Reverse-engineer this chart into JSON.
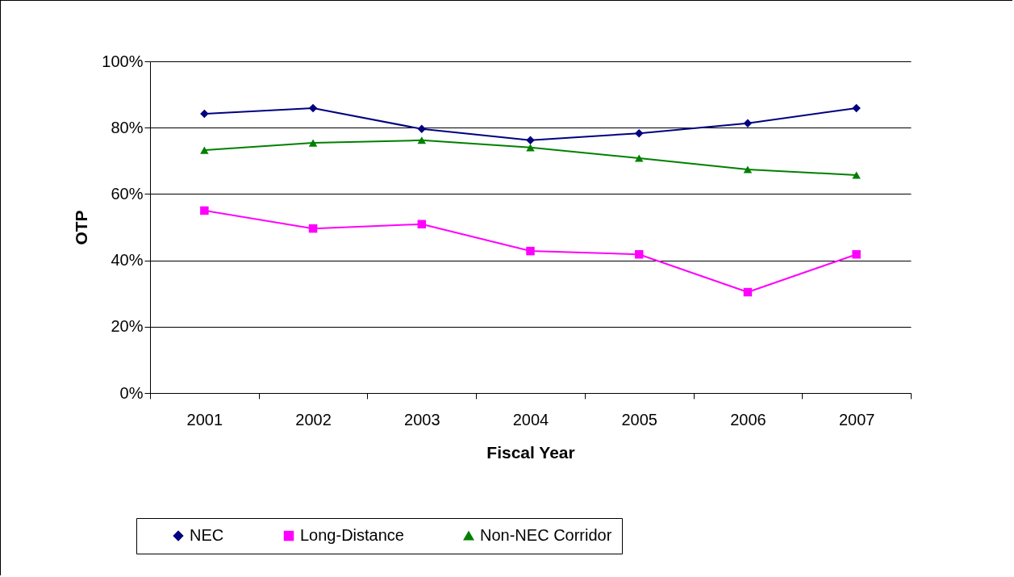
{
  "chart_data": {
    "type": "line",
    "xlabel": "Fiscal Year",
    "ylabel": "OTP",
    "categories": [
      "2001",
      "2002",
      "2003",
      "2004",
      "2005",
      "2006",
      "2007"
    ],
    "series": [
      {
        "name": "NEC",
        "color": "#000080",
        "marker": "diamond",
        "values": [
          84.2,
          85.9,
          79.6,
          76.2,
          78.3,
          81.3,
          85.9
        ]
      },
      {
        "name": "Long-Distance",
        "color": "#ff00ff",
        "marker": "square",
        "values": [
          55.0,
          49.6,
          50.9,
          42.8,
          41.8,
          30.4,
          41.8
        ]
      },
      {
        "name": "Non-NEC Corridor",
        "color": "#008000",
        "marker": "triangle",
        "values": [
          73.2,
          75.4,
          76.2,
          74.0,
          70.8,
          67.4,
          65.7
        ]
      }
    ],
    "ylim": [
      0,
      100
    ],
    "yticks": [
      {
        "value": 0,
        "label": "0%"
      },
      {
        "value": 20,
        "label": "20%"
      },
      {
        "value": 40,
        "label": "40%"
      },
      {
        "value": 60,
        "label": "60%"
      },
      {
        "value": 80,
        "label": "80%"
      },
      {
        "value": 100,
        "label": "100%"
      }
    ],
    "grid": "y",
    "legend": "bottom"
  }
}
